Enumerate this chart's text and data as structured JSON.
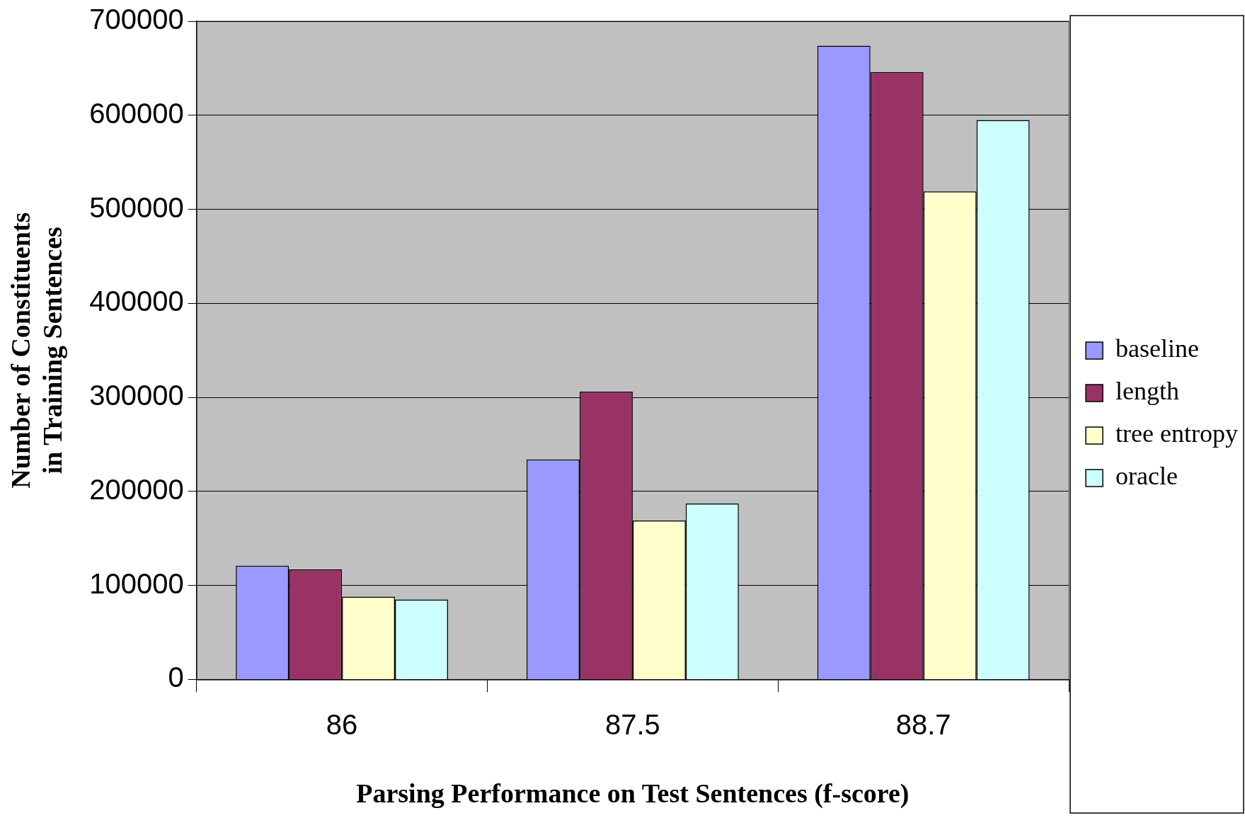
{
  "chart_data": {
    "type": "bar",
    "xlabel": "Parsing Performance on Test Sentences (f-score)",
    "ylabel": "Number of Constituents\nin Training Sentences",
    "categories": [
      "86",
      "87.5",
      "88.7"
    ],
    "series": [
      {
        "name": "baseline",
        "color": "#9999ff",
        "values": [
          121000,
          234000,
          674000
        ]
      },
      {
        "name": "length",
        "color": "#993366",
        "values": [
          117000,
          306000,
          646000
        ]
      },
      {
        "name": "tree entropy",
        "color": "#ffffcc",
        "values": [
          88000,
          169000,
          519000
        ]
      },
      {
        "name": "oracle",
        "color": "#ccffff",
        "values": [
          85000,
          187000,
          595000
        ]
      }
    ],
    "ylim": [
      0,
      700000
    ],
    "yticks": [
      0,
      100000,
      200000,
      300000,
      400000,
      500000,
      600000,
      700000
    ],
    "grid": "y",
    "legend": "right"
  }
}
